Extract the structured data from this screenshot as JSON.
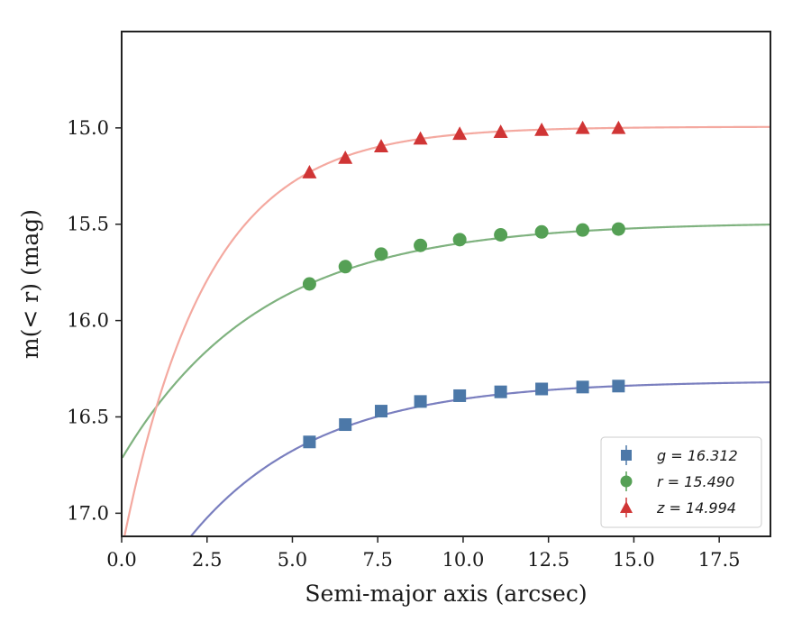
{
  "chart_data": {
    "type": "scatter",
    "xlabel": "Semi-major axis (arcsec)",
    "ylabel": "m(< r) (mag)",
    "xlim": [
      0,
      19
    ],
    "ylim": [
      17.12,
      14.5
    ],
    "y_inverted": true,
    "x_ticks": [
      0.0,
      2.5,
      5.0,
      7.5,
      10.0,
      12.5,
      15.0,
      17.5
    ],
    "x_tick_labels": [
      "0.0",
      "2.5",
      "5.0",
      "7.5",
      "10.0",
      "12.5",
      "15.0",
      "17.5"
    ],
    "y_ticks": [
      15.0,
      15.5,
      16.0,
      16.5,
      17.0
    ],
    "y_tick_labels": [
      "15.0",
      "15.5",
      "16.0",
      "16.5",
      "17.0"
    ],
    "legend_position": "lower-right",
    "series": [
      {
        "name": "g = 16.312",
        "legend_label": "g = 16.312",
        "marker": "square",
        "color": "#4C78A8",
        "curve_color": "#7A7FBF",
        "x": [
          5.5,
          6.55,
          7.6,
          8.75,
          9.9,
          11.1,
          12.3,
          13.5,
          14.55
        ],
        "y": [
          16.63,
          16.54,
          16.47,
          16.42,
          16.39,
          16.37,
          16.355,
          16.345,
          16.34
        ],
        "asymptote": 16.312
      },
      {
        "name": "r = 15.490",
        "legend_label": "r = 15.490",
        "marker": "circle",
        "color": "#55A055",
        "curve_color": "#7FB27F",
        "x": [
          5.5,
          6.55,
          7.6,
          8.75,
          9.9,
          11.1,
          12.3,
          13.5,
          14.55
        ],
        "y": [
          15.81,
          15.72,
          15.655,
          15.61,
          15.58,
          15.555,
          15.54,
          15.53,
          15.525
        ],
        "asymptote": 15.49
      },
      {
        "name": "z = 14.994",
        "legend_label": "z = 14.994",
        "marker": "triangle",
        "color": "#D03535",
        "curve_color": "#F4A9A0",
        "x": [
          5.5,
          6.55,
          7.6,
          8.75,
          9.9,
          11.1,
          12.3,
          13.5,
          14.55
        ],
        "y": [
          15.23,
          15.155,
          15.095,
          15.055,
          15.03,
          15.02,
          15.01,
          15.0,
          15.0
        ],
        "asymptote": 14.994
      }
    ]
  }
}
